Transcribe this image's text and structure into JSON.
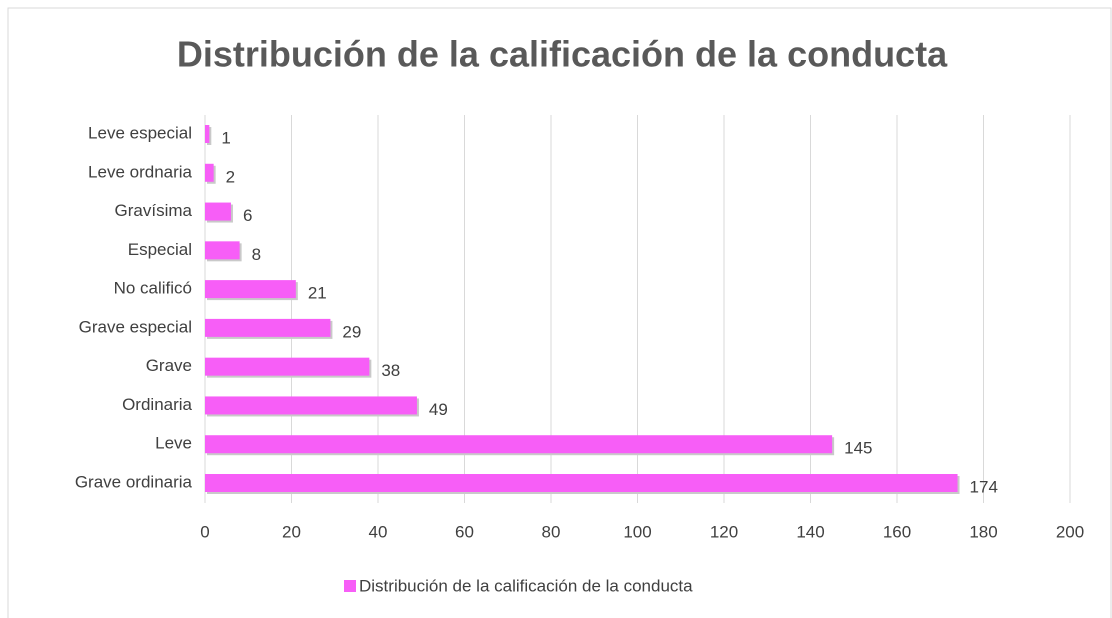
{
  "chart_data": {
    "type": "hbar",
    "title": "Distribución de la calificación de la conducta",
    "categories": [
      "Leve especial",
      "Leve ordnaria",
      "Gravísima",
      "Especial",
      "No calificó",
      "Grave especial",
      "Grave",
      "Ordinaria",
      "Leve",
      "Grave ordinaria"
    ],
    "series": [
      {
        "name": "Distribución de la calificación de la conducta",
        "color": "#f75ef7",
        "values": [
          1,
          2,
          6,
          8,
          21,
          29,
          38,
          49,
          145,
          174
        ]
      }
    ],
    "xlim": [
      0,
      200
    ],
    "xticks": [
      0,
      20,
      40,
      60,
      80,
      100,
      120,
      140,
      160,
      180,
      200
    ],
    "grid": true,
    "legend": "bottom",
    "data_labels": true
  }
}
